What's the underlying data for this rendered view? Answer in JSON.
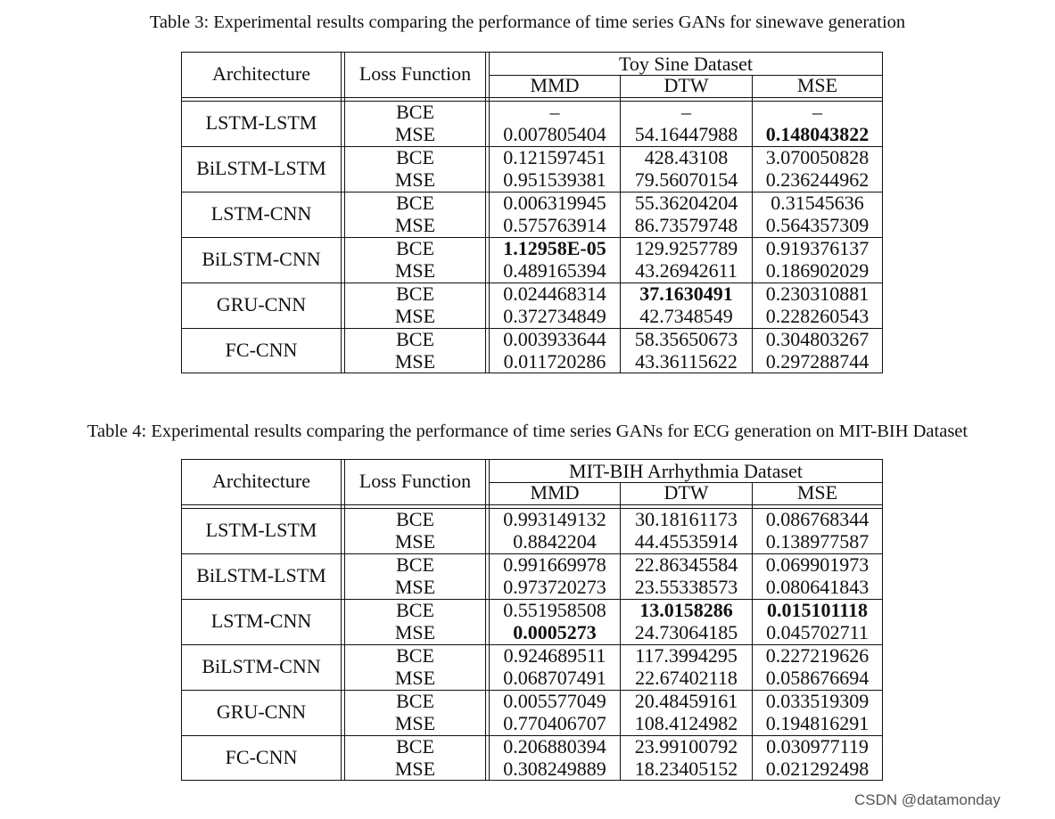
{
  "tables": [
    {
      "caption": "Table 3: Experimental results comparing the performance of time series GANs for sinewave generation",
      "headers": {
        "architecture": "Architecture",
        "loss": "Loss Function",
        "dataset": "Toy Sine Dataset",
        "metrics": [
          "MMD",
          "DTW",
          "MSE"
        ]
      },
      "rows": [
        {
          "arch": "LSTM-LSTM",
          "losses": [
            "BCE",
            "MSE"
          ],
          "values": [
            [
              "–",
              "–",
              "–"
            ],
            [
              "0.007805404",
              "54.16447988",
              "0.148043822"
            ]
          ]
        },
        {
          "arch": "BiLSTM-LSTM",
          "losses": [
            "BCE",
            "MSE"
          ],
          "values": [
            [
              "0.121597451",
              "428.43108",
              "3.070050828"
            ],
            [
              "0.951539381",
              "79.56070154",
              "0.236244962"
            ]
          ]
        },
        {
          "arch": "LSTM-CNN",
          "losses": [
            "BCE",
            "MSE"
          ],
          "values": [
            [
              "0.006319945",
              "55.36204204",
              "0.31545636"
            ],
            [
              "0.575763914",
              "86.73579748",
              "0.564357309"
            ]
          ]
        },
        {
          "arch": "BiLSTM-CNN",
          "losses": [
            "BCE",
            "MSE"
          ],
          "values": [
            [
              "1.12958E-05",
              "129.9257789",
              "0.919376137"
            ],
            [
              "0.489165394",
              "43.26942611",
              "0.186902029"
            ]
          ]
        },
        {
          "arch": "GRU-CNN",
          "losses": [
            "BCE",
            "MSE"
          ],
          "values": [
            [
              "0.024468314",
              "37.1630491",
              "0.230310881"
            ],
            [
              "0.372734849",
              "42.7348549",
              "0.228260543"
            ]
          ]
        },
        {
          "arch": "FC-CNN",
          "losses": [
            "BCE",
            "MSE"
          ],
          "values": [
            [
              "0.003933644",
              "58.35650673",
              "0.304803267"
            ],
            [
              "0.011720286",
              "43.36115622",
              "0.297288744"
            ]
          ]
        }
      ]
    },
    {
      "caption": "Table 4: Experimental results comparing the performance of time series GANs for ECG generation on MIT-BIH Dataset",
      "headers": {
        "architecture": "Architecture",
        "loss": "Loss Function",
        "dataset": "MIT-BIH Arrhythmia Dataset",
        "metrics": [
          "MMD",
          "DTW",
          "MSE"
        ]
      },
      "rows": [
        {
          "arch": "LSTM-LSTM",
          "losses": [
            "BCE",
            "MSE"
          ],
          "values": [
            [
              "0.993149132",
              "30.18161173",
              "0.086768344"
            ],
            [
              "0.8842204",
              "44.45535914",
              "0.138977587"
            ]
          ]
        },
        {
          "arch": "BiLSTM-LSTM",
          "losses": [
            "BCE",
            "MSE"
          ],
          "values": [
            [
              "0.991669978",
              "22.86345584",
              "0.069901973"
            ],
            [
              "0.973720273",
              "23.55338573",
              "0.080641843"
            ]
          ]
        },
        {
          "arch": "LSTM-CNN",
          "losses": [
            "BCE",
            "MSE"
          ],
          "values": [
            [
              "0.551958508",
              "13.0158286",
              "0.015101118"
            ],
            [
              "0.0005273",
              "24.73064185",
              "0.045702711"
            ]
          ]
        },
        {
          "arch": "BiLSTM-CNN",
          "losses": [
            "BCE",
            "MSE"
          ],
          "values": [
            [
              "0.924689511",
              "117.3994295",
              "0.227219626"
            ],
            [
              "0.068707491",
              "22.67402118",
              "0.058676694"
            ]
          ]
        },
        {
          "arch": "GRU-CNN",
          "losses": [
            "BCE",
            "MSE"
          ],
          "values": [
            [
              "0.005577049",
              "20.48459161",
              "0.033519309"
            ],
            [
              "0.770406707",
              "108.4124982",
              "0.194816291"
            ]
          ]
        },
        {
          "arch": "FC-CNN",
          "losses": [
            "BCE",
            "MSE"
          ],
          "values": [
            [
              "0.206880394",
              "23.99100792",
              "0.030977119"
            ],
            [
              "0.308249889",
              "18.23405152",
              "0.021292498"
            ]
          ]
        }
      ]
    }
  ],
  "watermark": "CSDN @datamonday"
}
